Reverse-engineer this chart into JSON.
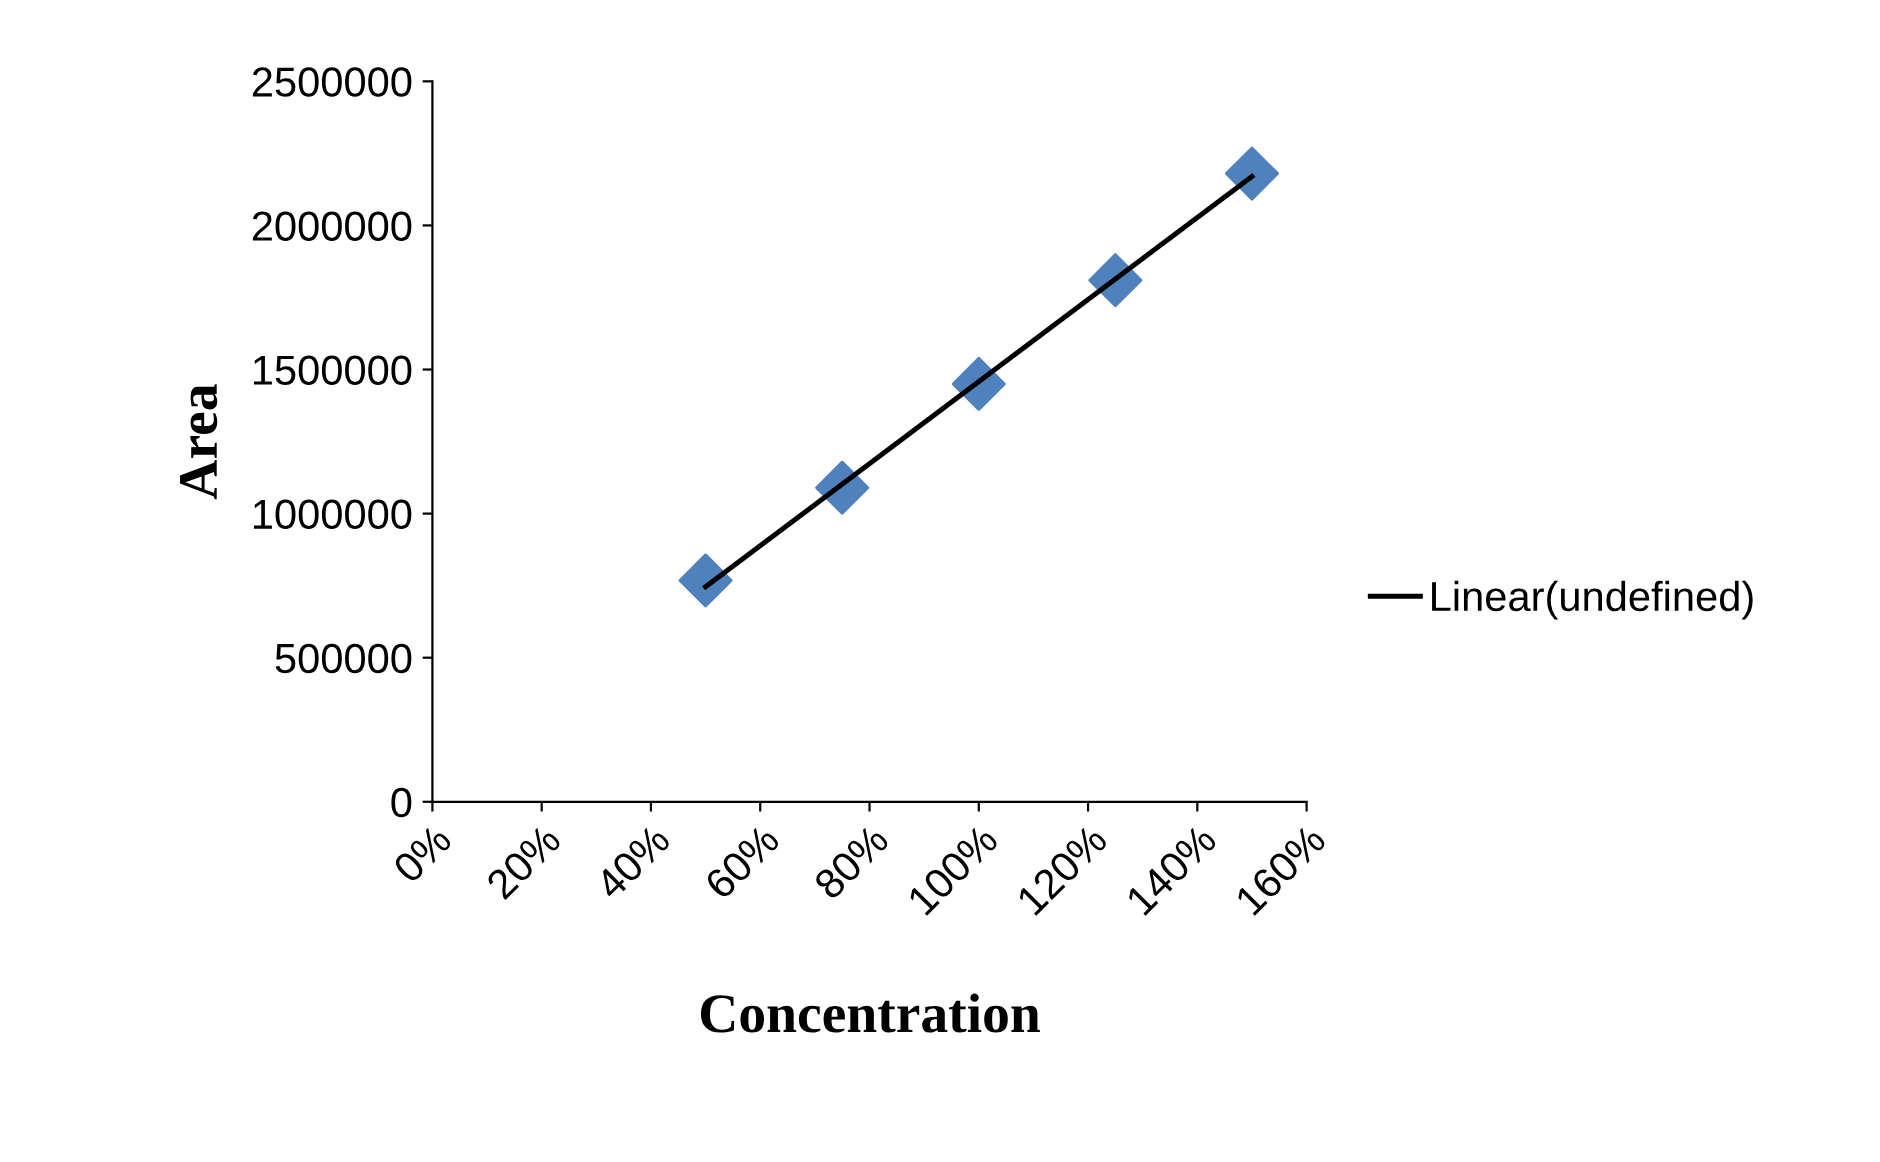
{
  "chart_data": {
    "type": "scatter",
    "xlabel": "Concentration",
    "ylabel": "Area",
    "x": [
      50,
      75,
      100,
      125,
      150
    ],
    "series": [
      {
        "color": "#4f81bd",
        "marker": "diamond",
        "values": [
          768000,
          1090000,
          1450000,
          1810000,
          2180000
        ]
      },
      {
        "type": "line",
        "name": "Linear(undefined)",
        "color": "#000000",
        "marker": "none",
        "x": [
          50,
          150
        ],
        "values": [
          746000,
          2170000
        ]
      }
    ],
    "xlim": [
      0,
      160
    ],
    "xticks": [
      {
        "value": 0,
        "label": "0%"
      },
      {
        "value": 20,
        "label": "20%"
      },
      {
        "value": 40,
        "label": "40%"
      },
      {
        "value": 60,
        "label": "60%"
      },
      {
        "value": 80,
        "label": "80%"
      },
      {
        "value": 100,
        "label": "100%"
      },
      {
        "value": 120,
        "label": "120%"
      },
      {
        "value": 140,
        "label": "140%"
      },
      {
        "value": 160,
        "label": "160%"
      }
    ],
    "ylim": [
      0,
      2500000
    ],
    "yticks": [
      0,
      500000,
      1000000,
      1500000,
      2000000,
      2500000
    ],
    "grid": false,
    "legend": "right"
  }
}
